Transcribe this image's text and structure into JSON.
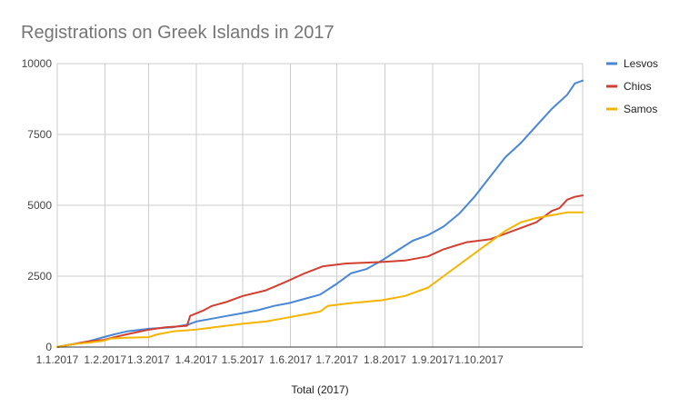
{
  "chart_data": {
    "type": "line",
    "title": "Registrations on Greek Islands in 2017",
    "xlabel": "Total (2017)",
    "ylabel": "",
    "ylim": [
      0,
      10000
    ],
    "y_ticks": [
      "0",
      "2500",
      "5000",
      "7500",
      "10000"
    ],
    "x_ticks": [
      "1.1.2017",
      "1.2.2017",
      "1.3.2017",
      "1.4.2017",
      "1.5.2017",
      "1.6.2017",
      "1.7.2017",
      "1.8.2017",
      "1.9.2017",
      "1.10.2017"
    ],
    "grid": true,
    "legend_position": "right",
    "series": [
      {
        "name": "Lesvos",
        "color": "#4a86d6",
        "points": [
          [
            0,
            0
          ],
          [
            10,
            100
          ],
          [
            20,
            200
          ],
          [
            30,
            350
          ],
          [
            37,
            450
          ],
          [
            45,
            550
          ],
          [
            60,
            650
          ],
          [
            75,
            700
          ],
          [
            85,
            800
          ],
          [
            90,
            900
          ],
          [
            100,
            1000
          ],
          [
            110,
            1100
          ],
          [
            120,
            1200
          ],
          [
            130,
            1300
          ],
          [
            140,
            1450
          ],
          [
            150,
            1550
          ],
          [
            160,
            1700
          ],
          [
            170,
            1850
          ],
          [
            180,
            2200
          ],
          [
            190,
            2600
          ],
          [
            200,
            2750
          ],
          [
            210,
            3050
          ],
          [
            220,
            3400
          ],
          [
            230,
            3750
          ],
          [
            240,
            3950
          ],
          [
            250,
            4250
          ],
          [
            260,
            4700
          ],
          [
            270,
            5300
          ],
          [
            280,
            6000
          ],
          [
            290,
            6700
          ],
          [
            300,
            7200
          ],
          [
            310,
            7800
          ],
          [
            320,
            8400
          ],
          [
            330,
            8900
          ],
          [
            335,
            9300
          ],
          [
            340,
            9400
          ]
        ]
      },
      {
        "name": "Chios",
        "color": "#d23f31",
        "points": [
          [
            0,
            0
          ],
          [
            10,
            100
          ],
          [
            20,
            200
          ],
          [
            30,
            250
          ],
          [
            37,
            350
          ],
          [
            45,
            450
          ],
          [
            58,
            600
          ],
          [
            70,
            700
          ],
          [
            84,
            750
          ],
          [
            86,
            1100
          ],
          [
            95,
            1300
          ],
          [
            100,
            1450
          ],
          [
            110,
            1600
          ],
          [
            120,
            1800
          ],
          [
            135,
            2000
          ],
          [
            148,
            2300
          ],
          [
            160,
            2600
          ],
          [
            172,
            2850
          ],
          [
            187,
            2950
          ],
          [
            210,
            3000
          ],
          [
            225,
            3050
          ],
          [
            240,
            3200
          ],
          [
            250,
            3450
          ],
          [
            265,
            3700
          ],
          [
            280,
            3800
          ],
          [
            295,
            4100
          ],
          [
            310,
            4400
          ],
          [
            320,
            4800
          ],
          [
            325,
            4900
          ],
          [
            330,
            5200
          ],
          [
            335,
            5300
          ],
          [
            340,
            5350
          ]
        ]
      },
      {
        "name": "Samos",
        "color": "#f5b400",
        "points": [
          [
            0,
            0
          ],
          [
            10,
            100
          ],
          [
            20,
            150
          ],
          [
            30,
            220
          ],
          [
            35,
            300
          ],
          [
            45,
            330
          ],
          [
            59,
            350
          ],
          [
            65,
            450
          ],
          [
            75,
            550
          ],
          [
            90,
            620
          ],
          [
            105,
            720
          ],
          [
            120,
            820
          ],
          [
            135,
            900
          ],
          [
            145,
            1000
          ],
          [
            160,
            1150
          ],
          [
            170,
            1250
          ],
          [
            175,
            1450
          ],
          [
            190,
            1550
          ],
          [
            210,
            1650
          ],
          [
            225,
            1800
          ],
          [
            240,
            2100
          ],
          [
            250,
            2500
          ],
          [
            260,
            2900
          ],
          [
            270,
            3300
          ],
          [
            280,
            3700
          ],
          [
            290,
            4100
          ],
          [
            300,
            4400
          ],
          [
            310,
            4550
          ],
          [
            320,
            4650
          ],
          [
            330,
            4750
          ],
          [
            340,
            4750
          ]
        ]
      }
    ]
  }
}
